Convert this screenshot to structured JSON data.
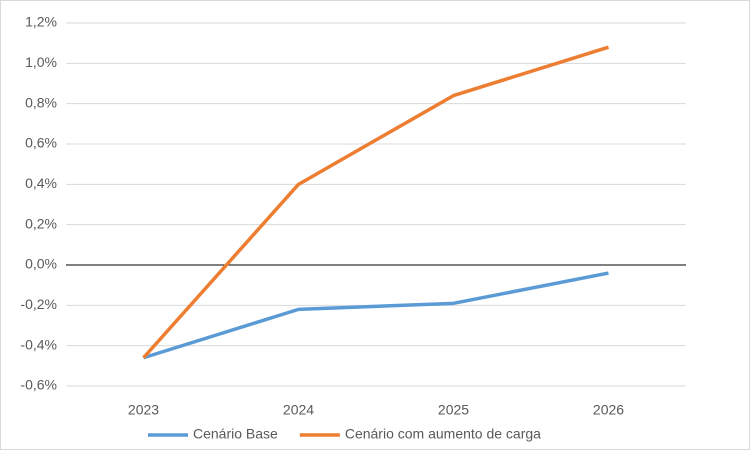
{
  "chart_data": {
    "type": "line",
    "categories": [
      "2023",
      "2024",
      "2025",
      "2026"
    ],
    "series": [
      {
        "name": "Cenário Base",
        "color": "#5b9bd5",
        "values": [
          -0.46,
          -0.22,
          -0.19,
          -0.04
        ]
      },
      {
        "name": "Cenário com aumento de carga",
        "color": "#ed7d31",
        "values": [
          -0.46,
          0.4,
          0.84,
          1.08
        ]
      }
    ],
    "ylim": [
      -0.6,
      1.2
    ],
    "yticks": [
      {
        "value": -0.6,
        "label": "-0,6%"
      },
      {
        "value": -0.4,
        "label": "-0,4%"
      },
      {
        "value": -0.2,
        "label": "-0,2%"
      },
      {
        "value": 0,
        "label": "0,0%"
      },
      {
        "value": 0.2,
        "label": "0,2%"
      },
      {
        "value": 0.4,
        "label": "0,4%"
      },
      {
        "value": 0.6,
        "label": "0,6%"
      },
      {
        "value": 0.8,
        "label": "0,8%"
      },
      {
        "value": 1.0,
        "label": "1,0%"
      },
      {
        "value": 1.2,
        "label": "1,2%"
      }
    ],
    "grid": true,
    "legend": "bottom"
  }
}
